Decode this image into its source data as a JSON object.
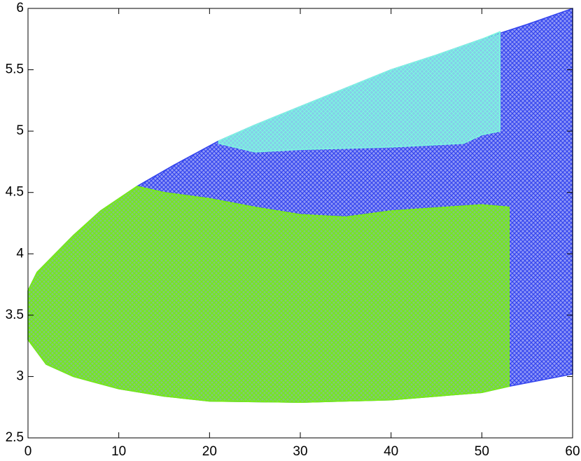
{
  "chart_data": {
    "type": "region",
    "xlim": [
      0,
      60
    ],
    "xticks": [
      0,
      10,
      20,
      30,
      40,
      50,
      60
    ],
    "ylim": [
      2.5,
      6
    ],
    "yticks": [
      2.5,
      3,
      3.5,
      4,
      4.5,
      5,
      5.5,
      6
    ],
    "series": [
      {
        "color": "#3344ee",
        "x": [
          0,
          1,
          3,
          5,
          8,
          12,
          16,
          21,
          25,
          30,
          35,
          40,
          45,
          50,
          55,
          60,
          60,
          53,
          50,
          40,
          30,
          20,
          15,
          10,
          5,
          2,
          0
        ],
        "y": [
          3.7,
          3.85,
          4.0,
          4.15,
          4.35,
          4.55,
          4.72,
          4.92,
          5.05,
          5.2,
          5.35,
          5.5,
          5.62,
          5.75,
          5.87,
          6.0,
          3.02,
          2.92,
          2.87,
          2.81,
          2.79,
          2.8,
          2.84,
          2.9,
          3.0,
          3.1,
          3.3
        ]
      },
      {
        "color": "#7ff5e0",
        "x": [
          21,
          25,
          30,
          35,
          40,
          45,
          50,
          52,
          52,
          50,
          48,
          40,
          30,
          25,
          21
        ],
        "y": [
          4.92,
          5.05,
          5.2,
          5.35,
          5.5,
          5.62,
          5.75,
          5.81,
          5.0,
          4.97,
          4.9,
          4.87,
          4.85,
          4.83,
          4.9
        ]
      },
      {
        "color": "#77ee11",
        "x": [
          0,
          1,
          3,
          5,
          8,
          12,
          15,
          20,
          25,
          30,
          35,
          40,
          50,
          53,
          53,
          50,
          40,
          30,
          20,
          15,
          10,
          5,
          2,
          0
        ],
        "y": [
          3.7,
          3.85,
          4.0,
          4.15,
          4.35,
          4.55,
          4.5,
          4.45,
          4.38,
          4.32,
          4.3,
          4.35,
          4.4,
          4.38,
          2.92,
          2.87,
          2.81,
          2.79,
          2.8,
          2.84,
          2.9,
          3.0,
          3.1,
          3.3
        ]
      }
    ]
  }
}
